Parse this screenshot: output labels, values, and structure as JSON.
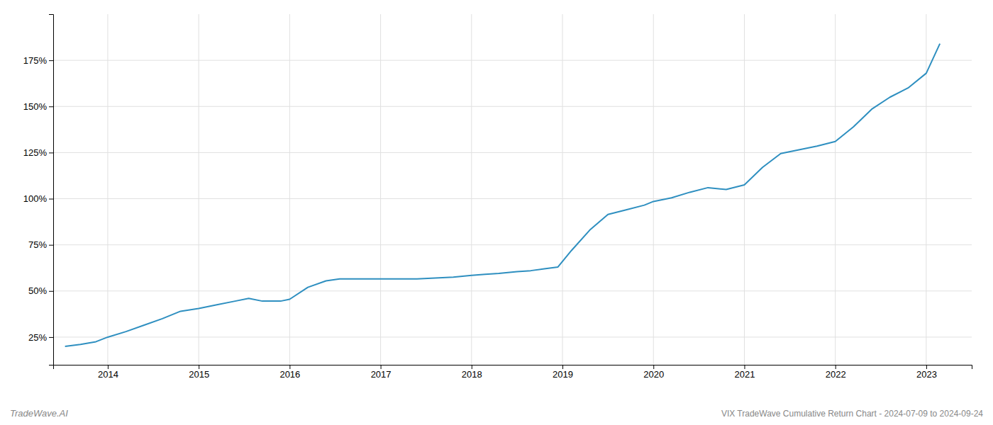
{
  "chart_data": {
    "type": "line",
    "title": "VIX TradeWave Cumulative Return Chart - 2024-07-09 to 2024-09-24",
    "annotations": [
      "TradeWave.AI"
    ],
    "color": "#2e8fc0",
    "x": [
      2013.53,
      2013.7,
      2013.87,
      2014.0,
      2014.2,
      2014.4,
      2014.6,
      2014.8,
      2015.0,
      2015.2,
      2015.4,
      2015.55,
      2015.7,
      2015.9,
      2016.0,
      2016.2,
      2016.4,
      2016.55,
      2016.7,
      2016.85,
      2017.0,
      2017.2,
      2017.4,
      2017.6,
      2017.8,
      2018.0,
      2018.15,
      2018.3,
      2018.5,
      2018.65,
      2018.8,
      2018.95,
      2019.1,
      2019.3,
      2019.5,
      2019.7,
      2019.9,
      2020.0,
      2020.2,
      2020.4,
      2020.6,
      2020.8,
      2021.0,
      2021.2,
      2021.4,
      2021.6,
      2021.8,
      2022.0,
      2022.2,
      2022.4,
      2022.6,
      2022.8,
      2023.0,
      2023.15
    ],
    "values": [
      20.0,
      21.0,
      22.5,
      25.0,
      28.0,
      31.5,
      35.0,
      39.0,
      40.5,
      42.5,
      44.5,
      46.0,
      44.5,
      44.5,
      45.5,
      52.0,
      55.5,
      56.5,
      56.5,
      56.5,
      56.5,
      56.5,
      56.5,
      57.0,
      57.5,
      58.5,
      59.0,
      59.5,
      60.5,
      61.0,
      62.0,
      63.0,
      72.0,
      83.0,
      91.5,
      94.0,
      96.5,
      98.5,
      100.5,
      103.5,
      106.0,
      105.0,
      107.5,
      117.0,
      124.5,
      126.5,
      128.5,
      131.0,
      139.0,
      148.5,
      155.0,
      160.0,
      168.0,
      184.0
    ],
    "xlim": [
      2013.4,
      2023.5
    ],
    "ylim": [
      10,
      200
    ],
    "xticks": [
      2014,
      2015,
      2016,
      2017,
      2018,
      2019,
      2020,
      2021,
      2022,
      2023
    ],
    "yticks": [
      {
        "value": 25,
        "label": "25%"
      },
      {
        "value": 50,
        "label": "50%"
      },
      {
        "value": 75,
        "label": "75%"
      },
      {
        "value": 100,
        "label": "100%"
      },
      {
        "value": 125,
        "label": "125%"
      },
      {
        "value": 150,
        "label": "150%"
      },
      {
        "value": 175,
        "label": "175%"
      }
    ],
    "grid": true
  }
}
